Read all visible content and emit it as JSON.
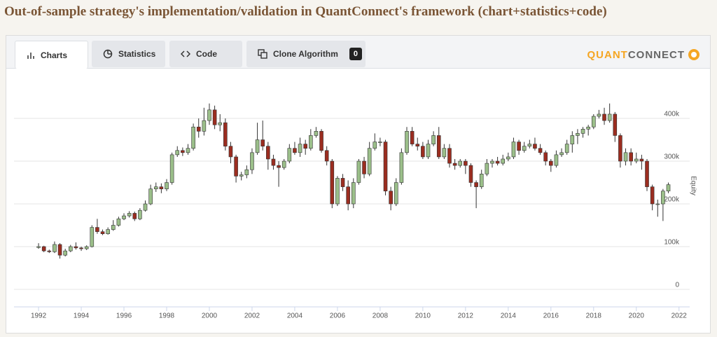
{
  "page": {
    "title": "Out-of-sample strategy's implementation/validation in QuantConnect's framework (chart+statistics+code)",
    "tabs": [
      "Charts",
      "Statistics",
      "Code",
      "Clone Algorithm"
    ],
    "clone_count": 0,
    "logo": [
      "QUANT",
      "CONNECT"
    ]
  },
  "chart_data": {
    "type": "candlestick",
    "y_label": "Equity",
    "up_color": "#9bbf8a",
    "down_color": "#9b2d20",
    "grid": true,
    "xlim": [
      1990.85,
      2022.5
    ],
    "xticks": [
      1992,
      1994,
      1996,
      1998,
      2000,
      2002,
      2004,
      2006,
      2008,
      2010,
      2012,
      2014,
      2016,
      2018,
      2020,
      2022
    ],
    "ylim": [
      -41000,
      505000
    ],
    "yticks": [
      0,
      {
        "value": 100000,
        "label": "100k"
      },
      {
        "value": 200000,
        "label": "200k"
      },
      {
        "value": 300000,
        "label": "300k"
      },
      {
        "value": 400000,
        "label": "400k"
      }
    ],
    "x": [
      1992,
      1992.25,
      1992.5,
      1992.75,
      1993,
      1993.25,
      1993.5,
      1993.75,
      1994,
      1994.25,
      1994.5,
      1994.75,
      1995,
      1995.25,
      1995.5,
      1995.75,
      1996,
      1996.25,
      1996.5,
      1996.75,
      1997,
      1997.25,
      1997.5,
      1997.75,
      1998,
      1998.25,
      1998.5,
      1998.75,
      1999,
      1999.25,
      1999.5,
      1999.75,
      2000,
      2000.25,
      2000.5,
      2000.75,
      2001,
      2001.25,
      2001.5,
      2001.75,
      2002,
      2002.25,
      2002.5,
      2002.75,
      2003,
      2003.25,
      2003.5,
      2003.75,
      2004,
      2004.25,
      2004.5,
      2004.75,
      2005,
      2005.25,
      2005.5,
      2005.75,
      2006,
      2006.25,
      2006.5,
      2006.75,
      2007,
      2007.25,
      2007.5,
      2007.75,
      2008,
      2008.25,
      2008.5,
      2008.75,
      2009,
      2009.25,
      2009.5,
      2009.75,
      2010,
      2010.25,
      2010.5,
      2010.75,
      2011,
      2011.25,
      2011.5,
      2011.75,
      2012,
      2012.25,
      2012.5,
      2012.75,
      2013,
      2013.25,
      2013.5,
      2013.75,
      2014,
      2014.25,
      2014.5,
      2014.75,
      2015,
      2015.25,
      2015.5,
      2015.75,
      2016,
      2016.25,
      2016.5,
      2016.75,
      2017,
      2017.25,
      2017.5,
      2017.75,
      2018,
      2018.25,
      2018.5,
      2018.75,
      2019,
      2019.25,
      2019.5,
      2019.75,
      2020,
      2020.25,
      2020.5,
      2020.75,
      2021,
      2021.25,
      2021.5
    ],
    "open": [
      98000,
      100000,
      90000,
      88000,
      105000,
      80000,
      90000,
      100000,
      97000,
      95000,
      100000,
      145000,
      135000,
      130000,
      140000,
      150000,
      165000,
      172000,
      178000,
      165000,
      185000,
      200000,
      235000,
      240000,
      235000,
      250000,
      315000,
      325000,
      320000,
      330000,
      380000,
      370000,
      395000,
      420000,
      385000,
      390000,
      335000,
      310000,
      265000,
      268000,
      280000,
      320000,
      350000,
      335000,
      305000,
      290000,
      285000,
      300000,
      330000,
      320000,
      340000,
      330000,
      360000,
      370000,
      325000,
      300000,
      200000,
      260000,
      240000,
      200000,
      250000,
      300000,
      270000,
      330000,
      345000,
      345000,
      230000,
      200000,
      250000,
      320000,
      370000,
      340000,
      335000,
      310000,
      340000,
      360000,
      310000,
      330000,
      295000,
      290000,
      300000,
      290000,
      250000,
      240000,
      270000,
      295000,
      300000,
      295000,
      305000,
      310000,
      345000,
      325000,
      335000,
      340000,
      330000,
      320000,
      300000,
      290000,
      315000,
      320000,
      340000,
      360000,
      365000,
      375000,
      380000,
      405000,
      410000,
      395000,
      410000,
      360000,
      300000,
      320000,
      300000,
      305000,
      300000,
      240000,
      200000,
      200000,
      230000
    ],
    "high": [
      108000,
      102000,
      93000,
      112000,
      108000,
      95000,
      104000,
      110000,
      100000,
      103000,
      150000,
      165000,
      140000,
      145000,
      162000,
      170000,
      178000,
      183000,
      182000,
      190000,
      208000,
      245000,
      250000,
      248000,
      258000,
      320000,
      335000,
      332000,
      340000,
      388000,
      400000,
      425000,
      435000,
      430000,
      410000,
      400000,
      345000,
      315000,
      275000,
      290000,
      330000,
      390000,
      395000,
      345000,
      315000,
      300000,
      305000,
      340000,
      345000,
      355000,
      350000,
      375000,
      380000,
      375000,
      335000,
      305000,
      265000,
      270000,
      255000,
      260000,
      305000,
      310000,
      345000,
      365000,
      355000,
      350000,
      240000,
      260000,
      330000,
      380000,
      380000,
      355000,
      345000,
      350000,
      370000,
      380000,
      340000,
      340000,
      305000,
      305000,
      305000,
      295000,
      255000,
      280000,
      305000,
      305000,
      310000,
      315000,
      320000,
      355000,
      350000,
      345000,
      350000,
      355000,
      340000,
      325000,
      305000,
      325000,
      330000,
      350000,
      370000,
      375000,
      380000,
      385000,
      410000,
      420000,
      425000,
      435000,
      415000,
      365000,
      330000,
      330000,
      320000,
      315000,
      305000,
      245000,
      210000,
      235000,
      250000
    ],
    "low": [
      95000,
      87000,
      85000,
      85000,
      72000,
      77000,
      87000,
      93000,
      90000,
      92000,
      98000,
      130000,
      127000,
      128000,
      137000,
      147000,
      162000,
      168000,
      160000,
      162000,
      182000,
      197000,
      228000,
      225000,
      230000,
      245000,
      310000,
      312000,
      315000,
      325000,
      355000,
      360000,
      385000,
      375000,
      370000,
      325000,
      295000,
      250000,
      255000,
      260000,
      270000,
      315000,
      325000,
      280000,
      280000,
      240000,
      280000,
      295000,
      315000,
      310000,
      315000,
      325000,
      355000,
      320000,
      290000,
      190000,
      195000,
      230000,
      185000,
      190000,
      245000,
      260000,
      265000,
      325000,
      335000,
      220000,
      185000,
      195000,
      245000,
      315000,
      335000,
      325000,
      305000,
      305000,
      335000,
      305000,
      305000,
      285000,
      280000,
      285000,
      270000,
      240000,
      190000,
      235000,
      265000,
      285000,
      290000,
      290000,
      300000,
      305000,
      315000,
      320000,
      330000,
      325000,
      315000,
      290000,
      275000,
      285000,
      310000,
      315000,
      320000,
      340000,
      355000,
      360000,
      375000,
      400000,
      385000,
      390000,
      345000,
      285000,
      290000,
      290000,
      295000,
      280000,
      230000,
      185000,
      170000,
      160000,
      225000
    ],
    "close": [
      100000,
      90000,
      88000,
      105000,
      80000,
      90000,
      100000,
      97000,
      95000,
      100000,
      145000,
      135000,
      130000,
      140000,
      150000,
      165000,
      172000,
      178000,
      165000,
      185000,
      200000,
      235000,
      240000,
      235000,
      250000,
      315000,
      325000,
      320000,
      330000,
      380000,
      370000,
      395000,
      420000,
      385000,
      390000,
      335000,
      310000,
      265000,
      268000,
      280000,
      320000,
      350000,
      335000,
      305000,
      290000,
      285000,
      300000,
      330000,
      320000,
      340000,
      330000,
      360000,
      370000,
      325000,
      300000,
      200000,
      260000,
      240000,
      200000,
      250000,
      300000,
      270000,
      330000,
      345000,
      345000,
      230000,
      200000,
      250000,
      320000,
      370000,
      340000,
      335000,
      310000,
      340000,
      360000,
      310000,
      330000,
      295000,
      290000,
      300000,
      290000,
      250000,
      240000,
      270000,
      295000,
      300000,
      295000,
      305000,
      310000,
      345000,
      325000,
      335000,
      340000,
      330000,
      320000,
      300000,
      290000,
      315000,
      320000,
      340000,
      360000,
      365000,
      375000,
      380000,
      405000,
      410000,
      395000,
      410000,
      360000,
      300000,
      320000,
      300000,
      305000,
      300000,
      240000,
      200000,
      200000,
      230000,
      245000
    ]
  }
}
